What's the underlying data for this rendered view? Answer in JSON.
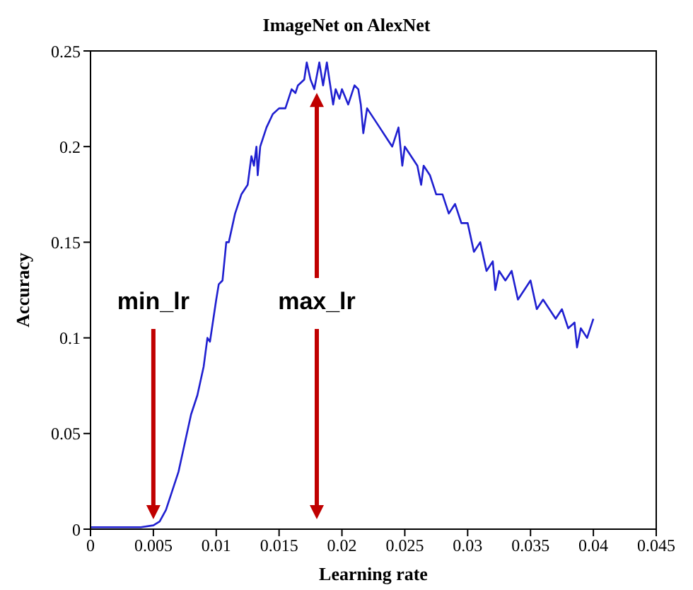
{
  "chart_data": {
    "type": "line",
    "title": "ImageNet on AlexNet",
    "xlabel": "Learning rate",
    "ylabel": "Accuracy",
    "x": [
      0,
      0.002,
      0.004,
      0.005,
      0.0055,
      0.006,
      0.0065,
      0.007,
      0.0075,
      0.008,
      0.0085,
      0.009,
      0.0093,
      0.0095,
      0.01,
      0.0102,
      0.0105,
      0.0108,
      0.011,
      0.0115,
      0.012,
      0.0125,
      0.0128,
      0.013,
      0.0132,
      0.0133,
      0.0135,
      0.014,
      0.0145,
      0.015,
      0.0155,
      0.016,
      0.0163,
      0.0165,
      0.017,
      0.0172,
      0.0175,
      0.0178,
      0.018,
      0.0182,
      0.0185,
      0.0188,
      0.019,
      0.0193,
      0.0195,
      0.0198,
      0.02,
      0.0205,
      0.021,
      0.0213,
      0.0215,
      0.0217,
      0.022,
      0.0225,
      0.023,
      0.0235,
      0.024,
      0.0245,
      0.0248,
      0.025,
      0.0255,
      0.026,
      0.0263,
      0.0265,
      0.027,
      0.0275,
      0.028,
      0.0285,
      0.029,
      0.0295,
      0.03,
      0.0305,
      0.031,
      0.0315,
      0.032,
      0.0322,
      0.0325,
      0.033,
      0.0335,
      0.034,
      0.0345,
      0.035,
      0.0355,
      0.036,
      0.0365,
      0.037,
      0.0375,
      0.038,
      0.0385,
      0.0387,
      0.039,
      0.0395,
      0.04
    ],
    "series": [
      {
        "color": "#1f1fd0",
        "values": [
          0.001,
          0.001,
          0.001,
          0.002,
          0.004,
          0.01,
          0.02,
          0.03,
          0.045,
          0.06,
          0.07,
          0.085,
          0.1,
          0.098,
          0.12,
          0.128,
          0.13,
          0.15,
          0.15,
          0.165,
          0.175,
          0.18,
          0.195,
          0.19,
          0.2,
          0.185,
          0.2,
          0.21,
          0.217,
          0.22,
          0.22,
          0.23,
          0.228,
          0.232,
          0.235,
          0.244,
          0.235,
          0.23,
          0.237,
          0.244,
          0.232,
          0.244,
          0.235,
          0.222,
          0.23,
          0.225,
          0.23,
          0.222,
          0.232,
          0.23,
          0.222,
          0.207,
          0.22,
          0.215,
          0.21,
          0.205,
          0.2,
          0.21,
          0.19,
          0.2,
          0.195,
          0.19,
          0.18,
          0.19,
          0.185,
          0.175,
          0.175,
          0.165,
          0.17,
          0.16,
          0.16,
          0.145,
          0.15,
          0.135,
          0.14,
          0.125,
          0.135,
          0.13,
          0.135,
          0.12,
          0.125,
          0.13,
          0.115,
          0.12,
          0.115,
          0.11,
          0.115,
          0.105,
          0.108,
          0.095,
          0.105,
          0.1,
          0.11
        ]
      }
    ],
    "xlim": [
      0,
      0.045
    ],
    "xticks": [
      0,
      0.005,
      0.01,
      0.015,
      0.02,
      0.025,
      0.03,
      0.035,
      0.04,
      0.045
    ],
    "ylim": [
      0,
      0.25
    ],
    "yticks": [
      0,
      0.05,
      0.1,
      0.15,
      0.2,
      0.25
    ],
    "grid": false,
    "legend": false,
    "marker": "none",
    "line_style": "solid",
    "annotations": [
      "min_lr",
      "max_lr"
    ]
  }
}
